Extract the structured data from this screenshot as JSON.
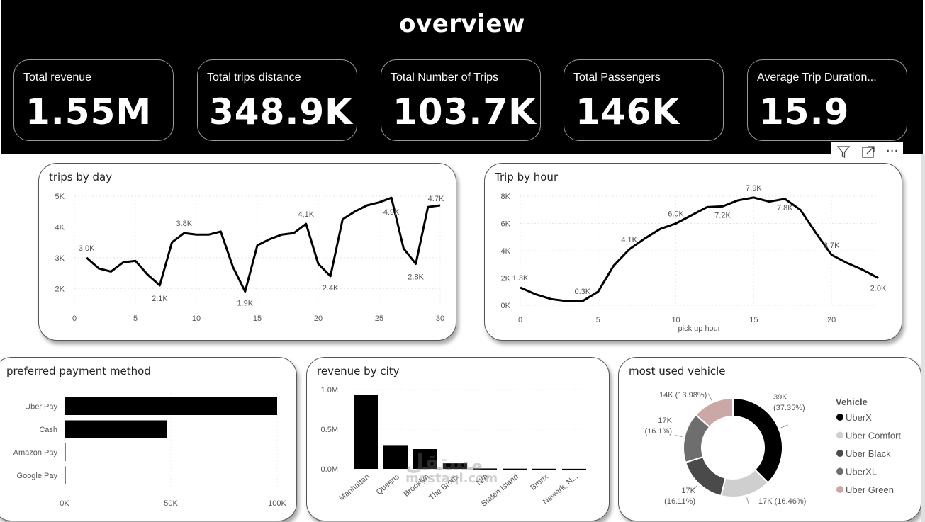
{
  "header": {
    "title": "overview"
  },
  "kpis": [
    {
      "label": "Total revenue",
      "value": "1.55M"
    },
    {
      "label": "Total trips distance",
      "value": "348.9K"
    },
    {
      "label": "Total Number of Trips",
      "value": "103.7K"
    },
    {
      "label": "Total Passengers",
      "value": "146K"
    },
    {
      "label": "Average Trip Duration...",
      "value": "15.9"
    }
  ],
  "toolbar": {
    "icons": [
      "filter-icon",
      "focus-mode-icon",
      "more-options-icon"
    ],
    "more_label": "···"
  },
  "panels": {
    "trips_by_day": {
      "title": "trips by day"
    },
    "trip_by_hour": {
      "title": "Trip by hour"
    },
    "payment": {
      "title": "preferred payment method"
    },
    "revenue_city": {
      "title": "revenue by city"
    },
    "vehicle": {
      "title": "most used vehicle"
    }
  },
  "watermark": {
    "arabic": "مستقل",
    "latin": "mostaql.com"
  },
  "chart_data": [
    {
      "type": "line",
      "title": "trips by day",
      "xlabel": "",
      "ylabel": "",
      "xlim": [
        0,
        30
      ],
      "ylim": [
        1500,
        5000
      ],
      "x_ticks": [
        "0",
        "5",
        "10",
        "15",
        "20",
        "25",
        "30"
      ],
      "y_ticks": [
        "2K",
        "3K",
        "4K",
        "5K"
      ],
      "x": [
        1,
        2,
        3,
        4,
        5,
        6,
        7,
        8,
        9,
        10,
        11,
        12,
        13,
        14,
        15,
        16,
        17,
        18,
        19,
        20,
        21,
        22,
        23,
        24,
        25,
        26,
        27,
        28,
        29,
        30
      ],
      "values": [
        3000,
        2650,
        2550,
        2850,
        2900,
        2450,
        2100,
        3500,
        3800,
        3750,
        3750,
        3850,
        2700,
        1900,
        3400,
        3600,
        3750,
        3800,
        4100,
        2800,
        2400,
        4250,
        4500,
        4700,
        4800,
        4950,
        3300,
        2800,
        4650,
        4700
      ],
      "data_labels": [
        {
          "x": 1,
          "text": "3.0K"
        },
        {
          "x": 7,
          "text": "2.1K"
        },
        {
          "x": 9,
          "text": "3.8K"
        },
        {
          "x": 14,
          "text": "1.9K"
        },
        {
          "x": 19,
          "text": "4.1K"
        },
        {
          "x": 21,
          "text": "2.4K"
        },
        {
          "x": 26,
          "text": "4.9K"
        },
        {
          "x": 28,
          "text": "2.8K"
        },
        {
          "x": 30,
          "text": "4.7K"
        }
      ],
      "grid": true
    },
    {
      "type": "line",
      "title": "Trip by hour",
      "xlabel": "pick up hour",
      "ylabel": "",
      "xlim": [
        0,
        23
      ],
      "ylim": [
        0,
        8000
      ],
      "x_ticks": [
        "0",
        "5",
        "10",
        "15",
        "20"
      ],
      "y_ticks": [
        "0K",
        "2K",
        "4K",
        "6K",
        "8K"
      ],
      "x": [
        0,
        1,
        2,
        3,
        4,
        5,
        6,
        7,
        8,
        9,
        10,
        11,
        12,
        13,
        14,
        15,
        16,
        17,
        18,
        19,
        20,
        21,
        22,
        23
      ],
      "values": [
        1300,
        800,
        450,
        300,
        300,
        1000,
        2900,
        4100,
        4900,
        5600,
        6000,
        6600,
        7200,
        7250,
        7700,
        7900,
        7600,
        7800,
        7000,
        5300,
        3700,
        3100,
        2600,
        2000
      ],
      "data_labels": [
        {
          "x": 0,
          "text": "1.3K"
        },
        {
          "x": 4,
          "text": "0.3K"
        },
        {
          "x": 7,
          "text": "4.1K"
        },
        {
          "x": 10,
          "text": "6.0K"
        },
        {
          "x": 13,
          "text": "7.2K"
        },
        {
          "x": 15,
          "text": "7.9K"
        },
        {
          "x": 17,
          "text": "7.8K"
        },
        {
          "x": 20,
          "text": "3.7K"
        },
        {
          "x": 23,
          "text": "2.0K"
        }
      ],
      "grid": true
    },
    {
      "type": "bar",
      "orientation": "horizontal",
      "title": "preferred payment method",
      "categories": [
        "Uber Pay",
        "Cash",
        "Amazon Pay",
        "Google Pay"
      ],
      "values": [
        100000,
        48000,
        500,
        300
      ],
      "xlim": [
        0,
        100000
      ],
      "x_ticks": [
        "0K",
        "50K",
        "100K"
      ],
      "grid": true
    },
    {
      "type": "bar",
      "title": "revenue by city",
      "categories": [
        "Manhattan",
        "Queens",
        "Brooklyn",
        "The Bronx",
        "N/A",
        "Staten Island",
        "Bronx",
        "Newark, N..."
      ],
      "values": [
        930000,
        300000,
        250000,
        70000,
        5000,
        3000,
        2000,
        1000
      ],
      "ylim": [
        0,
        1000000
      ],
      "y_ticks": [
        "0.0M",
        "0.5M",
        "1.0M"
      ],
      "grid": true
    },
    {
      "type": "pie",
      "donut": true,
      "title": "most used vehicle",
      "legend_title": "Vehicle",
      "legend_position": "right",
      "slices": [
        {
          "name": "UberX",
          "value": 39000,
          "label": "39K\n(37.35%)",
          "color": "#000000"
        },
        {
          "name": "Uber Comfort",
          "value": 17000,
          "label": "17K (16.46%)",
          "color": "#cfcfcf"
        },
        {
          "name": "Uber Black",
          "value": 17000,
          "label": "17K\n(16.11%)",
          "color": "#4a4a4a"
        },
        {
          "name": "UberXL",
          "value": 17000,
          "label": "17K\n(16.1%)",
          "color": "#6e6e6e"
        },
        {
          "name": "Uber Green",
          "value": 14000,
          "label": "14K (13.98%)",
          "color": "#c9a8a6"
        }
      ]
    }
  ]
}
